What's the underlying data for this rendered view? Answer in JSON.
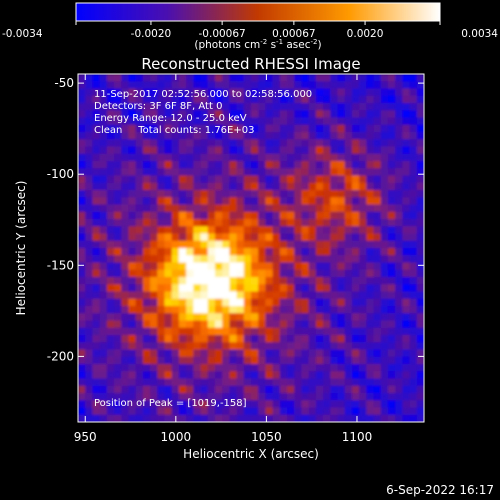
{
  "chart_data": {
    "type": "heatmap",
    "title": "Reconstructed RHESSI Image",
    "xlabel": "Heliocentric X (arcsec)",
    "ylabel": "Heliocentric Y (arcsec)",
    "xlim": [
      946,
      1137
    ],
    "ylim": [
      -236,
      -45
    ],
    "x_ticks": [
      950,
      1000,
      1050,
      1100
    ],
    "y_ticks": [
      -50,
      -100,
      -150,
      -200
    ],
    "colorbar": {
      "min": -0.0034,
      "max": 0.0034,
      "tick_values": [
        -0.0034,
        -0.002,
        -0.00067,
        0.00067,
        0.002,
        0.0034
      ],
      "tick_labels": [
        "-0.0034",
        "-0.0020",
        "-0.00067",
        "0.00067",
        "0.0020",
        "0.0034"
      ],
      "unit_main": "(photons cm",
      "unit_exp1": "-2",
      "unit_mid": " s",
      "unit_exp2": "-1",
      "unit_tail": " asec",
      "unit_exp3": "-2",
      "unit_close": ")"
    },
    "annotations": {
      "time_range": "11-Sep-2017 02:52:56.000 to 02:58:56.000",
      "detectors": "Detectors: 3F 6F 8F, Att 0",
      "energy": "Energy Range: 12.0 - 25.0 keV",
      "method": "Clean     Total counts: 1.76E+03",
      "peak": "Position of Peak = [1019,-158]"
    },
    "peak": {
      "x": 1019,
      "y": -158
    },
    "secondary_source": {
      "x": 1090,
      "y": -112
    },
    "colormap": [
      "#0000ff",
      "#5010a0",
      "#d84a00",
      "#ffd000",
      "#ffffff"
    ],
    "footer_date": "6-Sep-2022 16:17"
  }
}
